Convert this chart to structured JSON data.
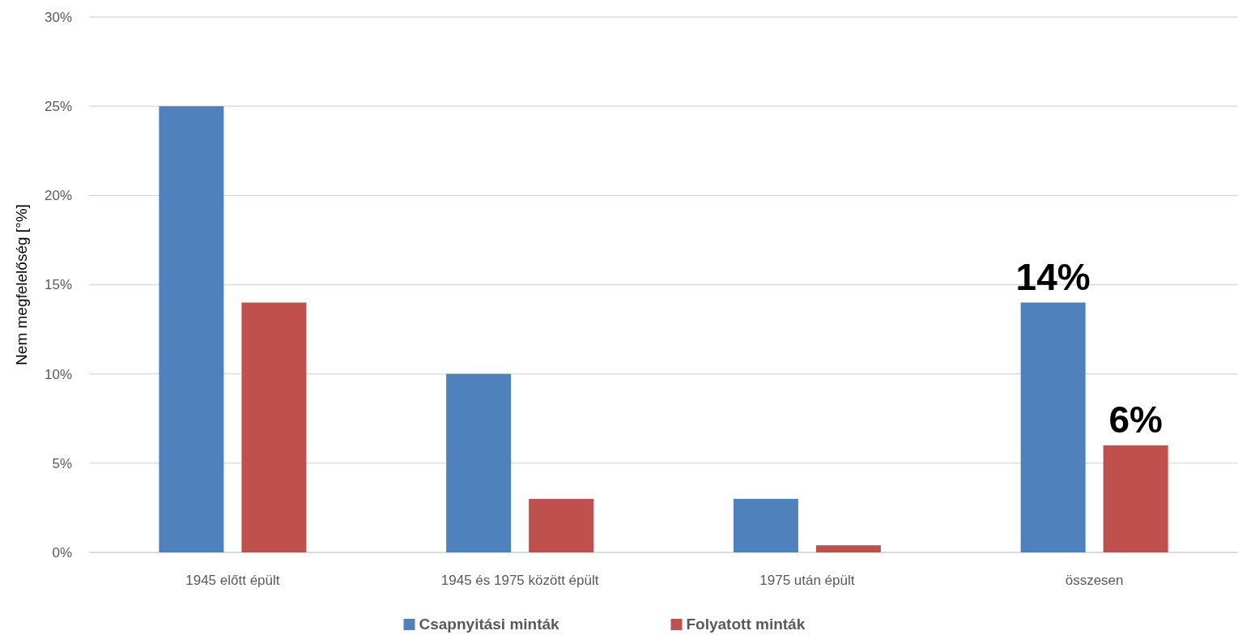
{
  "chart_data": {
    "type": "bar",
    "ylabel": "Nem megfelelőség [°%]",
    "categories": [
      "1945 előtt épült",
      "1945 és 1975 között épült",
      "1975 után épült",
      "összesen"
    ],
    "series": [
      {
        "name": "Csapnyitási minták",
        "color": "#4f81bd",
        "values": [
          25,
          10,
          3,
          14
        ],
        "value_labels": [
          null,
          null,
          null,
          "14%"
        ]
      },
      {
        "name": "Folyatott minták",
        "color": "#c0504d",
        "values": [
          14,
          3,
          0.4,
          6
        ],
        "value_labels": [
          null,
          null,
          null,
          "6%"
        ]
      }
    ],
    "ylim": [
      0,
      30
    ],
    "yticks": [
      {
        "value": 0,
        "label": "0%"
      },
      {
        "value": 5,
        "label": "5%"
      },
      {
        "value": 10,
        "label": "10%"
      },
      {
        "value": 15,
        "label": "15%"
      },
      {
        "value": 20,
        "label": "20%"
      },
      {
        "value": 25,
        "label": "25%"
      },
      {
        "value": 30,
        "label": "30%"
      }
    ],
    "grid": "y",
    "legend": "bottom"
  }
}
